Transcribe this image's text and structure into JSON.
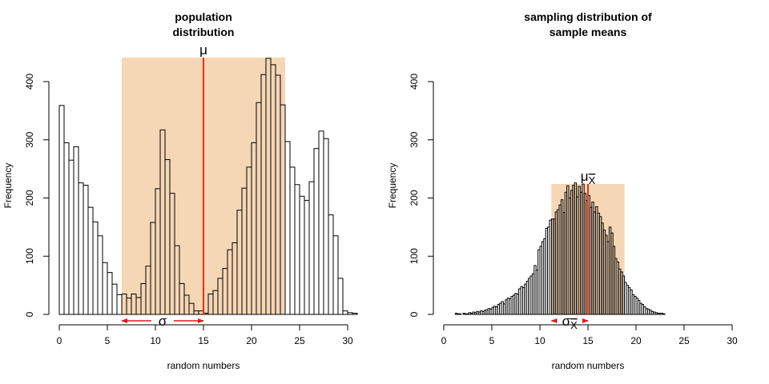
{
  "chart_data": [
    {
      "type": "bar",
      "title_lines": [
        "population",
        "distribution"
      ],
      "xlabel": "random numbers",
      "ylabel": "Frequency",
      "xlim": [
        0,
        30
      ],
      "ylim": [
        0,
        400
      ],
      "xticks": [
        0,
        5,
        10,
        15,
        20,
        25,
        30
      ],
      "yticks": [
        0,
        100,
        200,
        300,
        400
      ],
      "bin_width": 0.5,
      "bin_start": 0,
      "values": [
        359,
        295,
        265,
        288,
        226,
        222,
        184,
        159,
        135,
        89,
        72,
        52,
        34,
        35,
        28,
        35,
        29,
        53,
        83,
        158,
        216,
        317,
        266,
        208,
        118,
        53,
        33,
        19,
        6,
        6,
        2,
        35,
        41,
        62,
        79,
        111,
        123,
        179,
        217,
        253,
        295,
        364,
        412,
        440,
        429,
        411,
        360,
        297,
        253,
        223,
        203,
        196,
        228,
        285,
        315,
        302,
        171,
        135,
        62,
        6,
        3,
        2
      ],
      "mean": 15,
      "sd": 8.5,
      "mean_label": "μ",
      "sd_label": "σ",
      "colors": {
        "band": "#f5d6b5",
        "mean_line": "#e8301c",
        "sd_arrows": "#dd1a1a",
        "bars": "#ffffff"
      }
    },
    {
      "type": "bar",
      "title_lines": [
        "sampling distribution of",
        "sample means"
      ],
      "xlabel": "random numbers",
      "ylabel": "Frequency",
      "xlim": [
        0,
        30
      ],
      "ylim": [
        0,
        400
      ],
      "xticks": [
        0,
        5,
        10,
        15,
        20,
        25,
        30
      ],
      "yticks": [
        0,
        100,
        200,
        300,
        400
      ],
      "bin_width": 0.2,
      "bin_start": 1.2,
      "values": [
        2,
        1,
        1,
        0,
        2,
        1,
        1,
        3,
        2,
        4,
        3,
        5,
        4,
        6,
        5,
        7,
        8,
        10,
        9,
        12,
        14,
        13,
        17,
        19,
        22,
        18,
        25,
        28,
        27,
        31,
        33,
        36,
        35,
        44,
        48,
        46,
        52,
        57,
        62,
        66,
        70,
        84,
        76,
        111,
        117,
        125,
        130,
        148,
        150,
        162,
        164,
        164,
        176,
        180,
        188,
        197,
        175,
        210,
        221,
        200,
        213,
        222,
        226,
        202,
        220,
        210,
        224,
        208,
        196,
        204,
        184,
        193,
        176,
        185,
        174,
        168,
        157,
        145,
        136,
        125,
        150,
        140,
        117,
        96,
        90,
        78,
        73,
        66,
        55,
        50,
        46,
        42,
        34,
        31,
        28,
        24,
        19,
        17,
        13,
        10,
        9,
        7,
        5,
        4,
        3,
        2,
        2,
        2,
        1
      ],
      "mean": 15,
      "sd": 3.8,
      "mean_label": "μ",
      "mean_subscript": "X",
      "sd_label": "σ",
      "sd_subscript": "X",
      "colors": {
        "band": "#f5d6b5",
        "mean_line": "#e8301c",
        "sd_arrows": "#dd1a1a",
        "bars": "#ffffff"
      }
    }
  ]
}
